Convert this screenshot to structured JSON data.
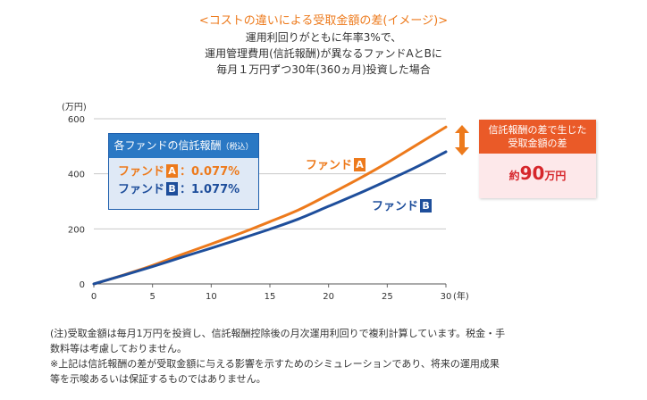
{
  "header": {
    "title": "<コストの違いによる受取金額の差(イメージ)>",
    "line1": "運用利回りがともに年率3%で、",
    "line2": "運用管理費用(信託報酬)が異なるファンドAとBに",
    "line3": "毎月１万円ずつ30年(360ヵ月)投資した場合"
  },
  "fee_box": {
    "title": "各ファンドの信託報酬",
    "title_note": "（税込）",
    "fund_a_prefix": "ファンド",
    "fund_a_badge": "A",
    "fund_a_value": "：0.077%",
    "fund_b_prefix": "ファンド",
    "fund_b_badge": "B",
    "fund_b_value": "：1.077%"
  },
  "line_labels": {
    "a_prefix": "ファンド",
    "a_badge": "A",
    "b_prefix": "ファンド",
    "b_badge": "B"
  },
  "diff_box": {
    "line1": "信託報酬の差で生じた",
    "line2": "受取金額の差",
    "prefix": "約",
    "amount": "90",
    "unit": "万円"
  },
  "notes": {
    "line1": "(注)受取金額は毎月1万円を投資し、信託報酬控除後の月次運用利回りで複利計算しています。税金・手",
    "line2": "数料等は考慮しておりません。",
    "line3": "※上記は信託報酬の差が受取金額に与える影響を示すためのシミュレーションであり、将来の運用成果",
    "line4": "等を示唆あるいは保証するものではありません。"
  },
  "chart_data": {
    "type": "line",
    "x": [
      0,
      2.5,
      5,
      7.5,
      10,
      12.5,
      15,
      17.5,
      20,
      22.5,
      25,
      27.5,
      30
    ],
    "series": [
      {
        "name": "ファンドA",
        "color": "#ed7a1c",
        "values": [
          0,
          32,
          67,
          107,
          145,
          184,
          226,
          270,
          324,
          380,
          440,
          505,
          570
        ]
      },
      {
        "name": "ファンドB",
        "color": "#1e4e9b",
        "values": [
          0,
          31,
          63,
          97,
          130,
          164,
          199,
          237,
          282,
          327,
          375,
          425,
          480
        ]
      }
    ],
    "xlim": [
      0,
      30
    ],
    "ylim": [
      0,
      600
    ],
    "xticks": [
      0,
      5,
      10,
      15,
      20,
      25,
      30
    ],
    "yticks": [
      0,
      200,
      400,
      600
    ],
    "xunit": "(年)",
    "yunit": "(万円)",
    "grid": "horizontal"
  }
}
